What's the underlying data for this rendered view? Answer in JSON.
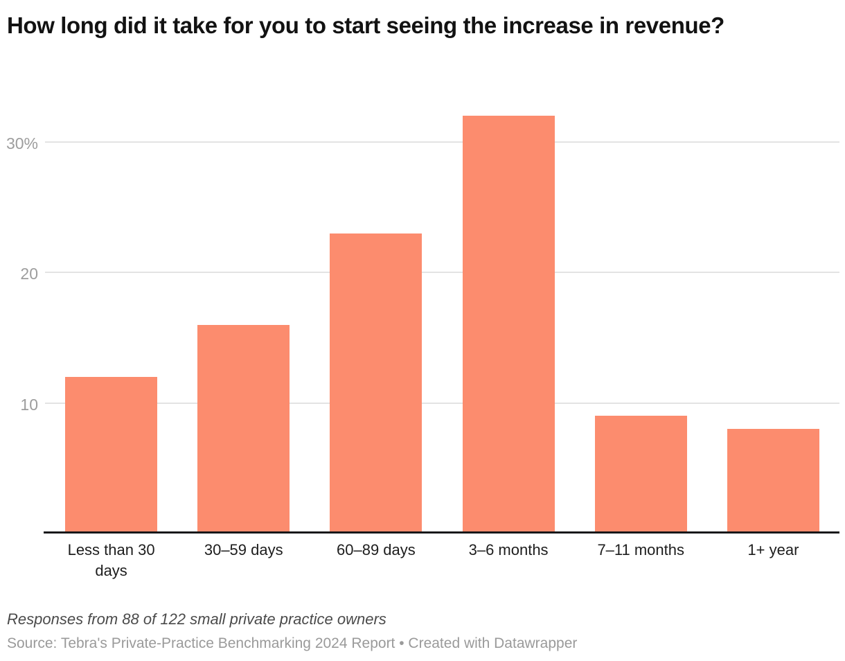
{
  "chart_data": {
    "type": "bar",
    "title": "How long did it take for you to start seeing the increase in revenue?",
    "categories": [
      "Less than 30 days",
      "30–59 days",
      "60–89 days",
      "3–6 months",
      "7–11 months",
      "1+ year"
    ],
    "values": [
      12,
      16,
      23,
      32,
      9,
      8
    ],
    "unit": "%",
    "xlabel": "",
    "ylabel": "",
    "ylim": [
      0,
      32.8
    ],
    "yticks": [
      {
        "value": 10,
        "label": "10"
      },
      {
        "value": 20,
        "label": "20"
      },
      {
        "value": 30,
        "label": "30%"
      }
    ],
    "grid": "horizontal",
    "legend": "none"
  },
  "footer": {
    "notes": "Responses from 88 of 122 small private practice owners",
    "source": "Source: Tebra's Private-Practice Benchmarking 2024 Report • Created with Datawrapper"
  },
  "colors": {
    "bar": "#fc8c6e",
    "gridline": "#e3e3e3",
    "axis": "#18181a",
    "tick_label": "#9d9d9d",
    "category_label": "#1d1d1d",
    "title": "#121212",
    "notes": "#4a4a4a",
    "source": "#9a9a9a"
  }
}
